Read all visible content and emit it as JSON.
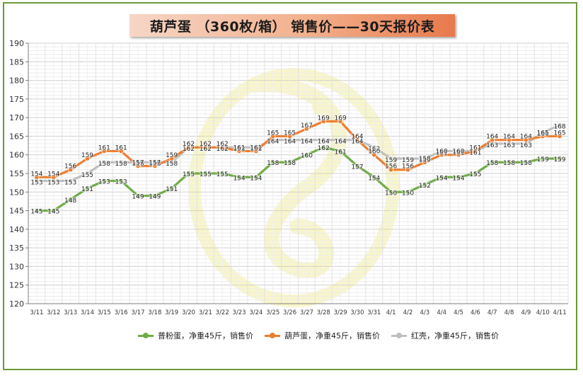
{
  "title": "葫芦蛋 （360枚/箱） 销售价——30天报价表",
  "chart_data": {
    "type": "line",
    "categories": [
      "3/11",
      "3/12",
      "3/13",
      "3/14",
      "3/15",
      "3/16",
      "3/17",
      "3/18",
      "3/19",
      "3/20",
      "3/21",
      "3/22",
      "3/23",
      "3/24",
      "3/25",
      "3/26",
      "3/27",
      "3/28",
      "3/29",
      "3/30",
      "3/31",
      "4/1",
      "4/2",
      "4/3",
      "4/4",
      "4/5",
      "4/6",
      "4/7",
      "4/8",
      "4/9",
      "4/10",
      "4/11"
    ],
    "ylim": [
      120,
      190
    ],
    "yticks": [
      120,
      125,
      130,
      135,
      140,
      145,
      150,
      155,
      160,
      165,
      170,
      175,
      180,
      185,
      190
    ],
    "grid": true,
    "legend_position": "bottom",
    "series": [
      {
        "name": "普粉蛋，净重45斤，销售价",
        "color": "#6fac46",
        "values": [
          145,
          145,
          148,
          151,
          153,
          153,
          149,
          149,
          151,
          155,
          155,
          155,
          154,
          154,
          158,
          158,
          160,
          162,
          161,
          157,
          154,
          150,
          150,
          152,
          154,
          154,
          155,
          158,
          158,
          158,
          159,
          159
        ]
      },
      {
        "name": "葫芦蛋，净重45斤，销售价",
        "color": "#ed7d31",
        "values": [
          154,
          154,
          156,
          159,
          161,
          161,
          157,
          157,
          159,
          162,
          162,
          162,
          161,
          161,
          165,
          165,
          167,
          169,
          169,
          164,
          160,
          156,
          156,
          158,
          160,
          160,
          161,
          164,
          164,
          164,
          165,
          165
        ]
      },
      {
        "name": "红壳，净重45斤，销售价",
        "color": "#bfbfbf",
        "values": [
          153,
          153,
          153,
          155,
          158,
          158,
          158,
          158,
          158,
          162,
          162,
          162,
          162,
          162,
          164,
          164,
          164,
          164,
          164,
          164,
          162,
          159,
          159,
          159,
          161,
          161,
          161,
          163,
          163,
          163,
          166,
          168
        ]
      }
    ]
  }
}
